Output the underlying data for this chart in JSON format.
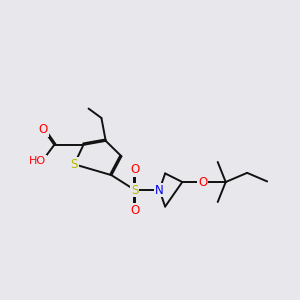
{
  "bg_color": "#e8e8ec",
  "atom_colors": {
    "S": "#b8b800",
    "O": "#ff0000",
    "N": "#0000ee",
    "H": "#607080"
  },
  "bond_color": "#111111",
  "bond_width": 1.4,
  "dbo": 0.055,
  "font_size": 8.5,
  "xlim": [
    0,
    10.5
  ],
  "ylim": [
    2.5,
    8.5
  ]
}
